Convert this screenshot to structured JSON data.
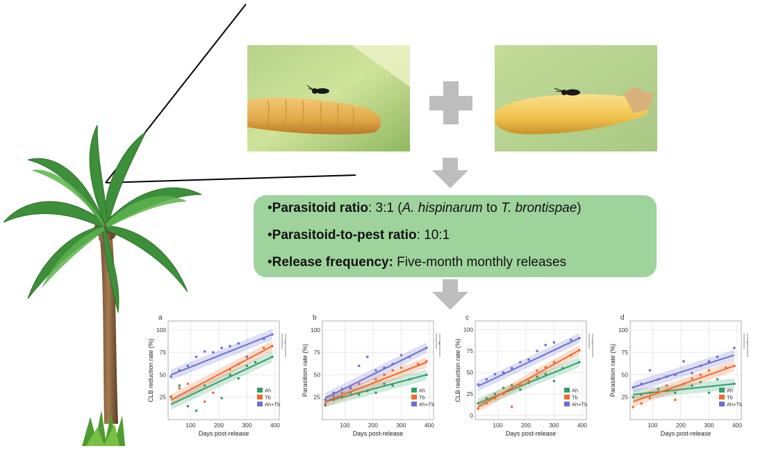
{
  "info_box": {
    "line1": {
      "bullet": "•",
      "label": "Parasitoid ratio",
      "sep": ": 3:1 (",
      "species1": "A. hispinarum",
      "mid": " to ",
      "species2": "T. brontispae",
      "end": ")"
    },
    "line2": {
      "bullet": "•",
      "label": "Parasitoid-to-pest ratio",
      "value": ": 10:1"
    },
    "line3": {
      "bullet": "•",
      "label": "Release frequency:",
      "value": " Five-month monthly releases"
    }
  },
  "images": {
    "palm_tree": "palm-tree-illustration",
    "photo_left": "parasitoid-on-larva-photo",
    "photo_right": "parasitoid-on-pupa-photo"
  },
  "colors": {
    "box_green": "#9fd39c",
    "arrow_gray": "#bdbdbd",
    "ah": "#2e9e6b",
    "tb": "#f06a2a",
    "ahtb": "#6b6fd1"
  },
  "chart_data": [
    {
      "panel": "a",
      "type": "scatter",
      "ylabel": "CLB reduction rate (%)",
      "xlabel": "Days post-release",
      "xticks": [
        "100",
        "200",
        "300",
        "400"
      ],
      "yticks": [
        "25",
        "50",
        "75",
        "100"
      ],
      "xlim": [
        20,
        415
      ],
      "ylim": [
        0,
        110
      ],
      "legend": [
        "Ah",
        "Tb",
        "Ah+Tb"
      ],
      "sig": [
        "*",
        "**"
      ],
      "series": [
        {
          "name": "Ah",
          "line": [
            [
              30,
              17
            ],
            [
              390,
              70
            ]
          ],
          "points": [
            [
              30,
              25
            ],
            [
              60,
              38
            ],
            [
              90,
              15
            ],
            [
              120,
              10
            ],
            [
              150,
              38
            ],
            [
              210,
              24
            ],
            [
              240,
              50
            ],
            [
              270,
              46
            ],
            [
              300,
              60
            ],
            [
              330,
              64
            ],
            [
              390,
              70
            ]
          ]
        },
        {
          "name": "Tb",
          "line": [
            [
              30,
              22
            ],
            [
              390,
              82
            ]
          ],
          "points": [
            [
              30,
              26
            ],
            [
              60,
              35
            ],
            [
              90,
              40
            ],
            [
              150,
              20
            ],
            [
              180,
              30
            ],
            [
              240,
              56
            ],
            [
              270,
              62
            ],
            [
              300,
              70
            ],
            [
              360,
              80
            ],
            [
              390,
              82
            ]
          ]
        },
        {
          "name": "Ah+Tb",
          "line": [
            [
              30,
              50
            ],
            [
              390,
              95
            ]
          ],
          "points": [
            [
              30,
              48
            ],
            [
              60,
              55
            ],
            [
              90,
              60
            ],
            [
              120,
              70
            ],
            [
              150,
              76
            ],
            [
              180,
              75
            ],
            [
              210,
              80
            ],
            [
              240,
              82
            ],
            [
              270,
              85
            ],
            [
              300,
              70
            ],
            [
              360,
              90
            ],
            [
              390,
              95
            ]
          ]
        }
      ]
    },
    {
      "panel": "b",
      "type": "scatter",
      "ylabel": "Parasitism rate (%)",
      "xlabel": "Days post-release",
      "xticks": [
        "100",
        "200",
        "300",
        "400"
      ],
      "yticks": [
        "25",
        "50",
        "75",
        "100"
      ],
      "xlim": [
        20,
        415
      ],
      "ylim": [
        0,
        110
      ],
      "legend": [
        "Ah",
        "Tb",
        "Ah+Tb"
      ],
      "sig": [
        "**",
        "***"
      ],
      "series": [
        {
          "name": "Ah",
          "line": [
            [
              30,
              20
            ],
            [
              390,
              50
            ]
          ],
          "points": [
            [
              30,
              16
            ],
            [
              60,
              22
            ],
            [
              90,
              25
            ],
            [
              120,
              30
            ],
            [
              150,
              28
            ],
            [
              180,
              32
            ],
            [
              210,
              30
            ],
            [
              240,
              40
            ],
            [
              270,
              38
            ],
            [
              330,
              45
            ],
            [
              390,
              50
            ]
          ]
        },
        {
          "name": "Tb",
          "line": [
            [
              30,
              20
            ],
            [
              390,
              64
            ]
          ],
          "points": [
            [
              30,
              18
            ],
            [
              60,
              26
            ],
            [
              90,
              30
            ],
            [
              120,
              36
            ],
            [
              150,
              40
            ],
            [
              210,
              45
            ],
            [
              240,
              50
            ],
            [
              270,
              55
            ],
            [
              300,
              58
            ],
            [
              360,
              62
            ],
            [
              390,
              65
            ]
          ]
        },
        {
          "name": "Ah+Tb",
          "line": [
            [
              30,
              24
            ],
            [
              390,
              80
            ]
          ],
          "points": [
            [
              30,
              22
            ],
            [
              60,
              30
            ],
            [
              90,
              34
            ],
            [
              120,
              35
            ],
            [
              150,
              60
            ],
            [
              180,
              70
            ],
            [
              210,
              55
            ],
            [
              240,
              58
            ],
            [
              270,
              62
            ],
            [
              300,
              72
            ],
            [
              330,
              70
            ],
            [
              390,
              80
            ]
          ]
        }
      ]
    },
    {
      "panel": "c",
      "type": "scatter",
      "ylabel": "CLB reduction rate (%)",
      "xlabel": "Days post-release",
      "xticks": [
        "100",
        "200",
        "300",
        "400"
      ],
      "yticks": [
        "0",
        "25",
        "50",
        "75",
        "100"
      ],
      "xlim": [
        20,
        415
      ],
      "ylim": [
        -5,
        110
      ],
      "legend": [
        "Ah",
        "Tb",
        "Ah+Tb"
      ],
      "sig": [
        "*",
        "**"
      ],
      "series": [
        {
          "name": "Ah",
          "line": [
            [
              30,
              14
            ],
            [
              390,
              62
            ]
          ],
          "points": [
            [
              30,
              14
            ],
            [
              60,
              20
            ],
            [
              90,
              25
            ],
            [
              120,
              32
            ],
            [
              150,
              35
            ],
            [
              180,
              30
            ],
            [
              210,
              38
            ],
            [
              240,
              45
            ],
            [
              270,
              48
            ],
            [
              300,
              40
            ],
            [
              330,
              55
            ],
            [
              390,
              62
            ]
          ]
        },
        {
          "name": "Tb",
          "line": [
            [
              30,
              10
            ],
            [
              390,
              76
            ]
          ],
          "points": [
            [
              30,
              8
            ],
            [
              60,
              14
            ],
            [
              90,
              20
            ],
            [
              120,
              25
            ],
            [
              150,
              10
            ],
            [
              180,
              35
            ],
            [
              210,
              40
            ],
            [
              240,
              52
            ],
            [
              270,
              56
            ],
            [
              300,
              62
            ],
            [
              360,
              70
            ],
            [
              390,
              76
            ]
          ]
        },
        {
          "name": "Ah+Tb",
          "line": [
            [
              30,
              34
            ],
            [
              390,
              90
            ]
          ],
          "points": [
            [
              30,
              36
            ],
            [
              60,
              42
            ],
            [
              90,
              48
            ],
            [
              120,
              50
            ],
            [
              150,
              55
            ],
            [
              180,
              62
            ],
            [
              210,
              65
            ],
            [
              240,
              75
            ],
            [
              270,
              82
            ],
            [
              300,
              85
            ],
            [
              360,
              88
            ],
            [
              390,
              90
            ]
          ]
        }
      ]
    },
    {
      "panel": "d",
      "type": "scatter",
      "ylabel": "Parasitism rate (%)",
      "xlabel": "Days post-release",
      "xticks": [
        "100",
        "200",
        "300",
        "400"
      ],
      "yticks": [
        "25",
        "50",
        "75",
        "100"
      ],
      "xlim": [
        20,
        415
      ],
      "ylim": [
        0,
        110
      ],
      "legend": [
        "Ah",
        "Tb",
        "Ah+Tb"
      ],
      "sig": [
        "*",
        "**"
      ],
      "series": [
        {
          "name": "Ah",
          "line": [
            [
              30,
              28
            ],
            [
              390,
              40
            ]
          ],
          "points": [
            [
              30,
              25
            ],
            [
              60,
              28
            ],
            [
              90,
              30
            ],
            [
              120,
              34
            ],
            [
              150,
              32
            ],
            [
              180,
              30
            ],
            [
              210,
              40
            ],
            [
              240,
              38
            ],
            [
              270,
              42
            ],
            [
              300,
              30
            ],
            [
              330,
              45
            ],
            [
              390,
              40
            ]
          ]
        },
        {
          "name": "Tb",
          "line": [
            [
              30,
              20
            ],
            [
              390,
              60
            ]
          ],
          "points": [
            [
              30,
              14
            ],
            [
              60,
              18
            ],
            [
              90,
              24
            ],
            [
              120,
              30
            ],
            [
              150,
              38
            ],
            [
              180,
              22
            ],
            [
              210,
              40
            ],
            [
              240,
              46
            ],
            [
              270,
              50
            ],
            [
              300,
              55
            ],
            [
              360,
              58
            ],
            [
              390,
              60
            ]
          ]
        },
        {
          "name": "Ah+Tb",
          "line": [
            [
              30,
              36
            ],
            [
              390,
              72
            ]
          ],
          "points": [
            [
              30,
              36
            ],
            [
              60,
              40
            ],
            [
              90,
              55
            ],
            [
              120,
              45
            ],
            [
              150,
              48
            ],
            [
              180,
              50
            ],
            [
              210,
              65
            ],
            [
              240,
              52
            ],
            [
              270,
              60
            ],
            [
              300,
              65
            ],
            [
              330,
              70
            ],
            [
              390,
              80
            ]
          ]
        }
      ]
    }
  ]
}
